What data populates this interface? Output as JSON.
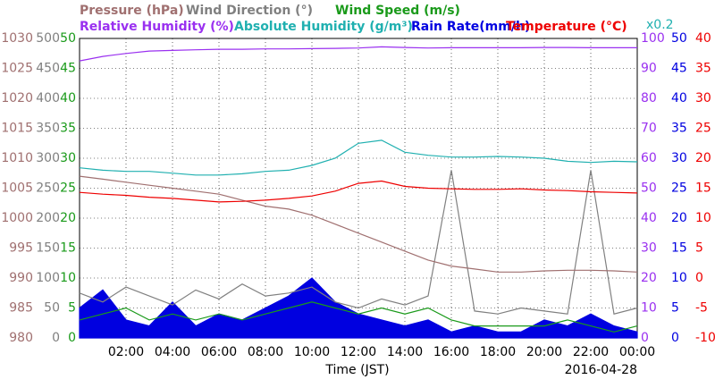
{
  "chart_data": {
    "type": "line",
    "annotation": "x0.2",
    "xlabel": "Time (JST)",
    "date": "2016-04-28",
    "x": [
      0,
      1,
      2,
      3,
      4,
      5,
      6,
      7,
      8,
      9,
      10,
      11,
      12,
      13,
      14,
      15,
      16,
      17,
      18,
      19,
      20,
      21,
      22,
      23,
      24
    ],
    "xlim": [
      0,
      24
    ],
    "xticks": [
      {
        "value": 2,
        "label": "02:00"
      },
      {
        "value": 4,
        "label": "04:00"
      },
      {
        "value": 6,
        "label": "06:00"
      },
      {
        "value": 8,
        "label": "08:00"
      },
      {
        "value": 10,
        "label": "10:00"
      },
      {
        "value": 12,
        "label": "12:00"
      },
      {
        "value": 14,
        "label": "14:00"
      },
      {
        "value": 16,
        "label": "16:00"
      },
      {
        "value": 18,
        "label": "18:00"
      },
      {
        "value": 20,
        "label": "20:00"
      },
      {
        "value": 22,
        "label": "22:00"
      },
      {
        "value": 24,
        "label": "00:00"
      }
    ],
    "grid": true,
    "ylim": [
      980,
      1030
    ],
    "yticks": [
      980,
      985,
      990,
      995,
      1000,
      1005,
      1010,
      1015,
      1020,
      1025,
      1030
    ],
    "ycolor": "#a07070",
    "y2lim": [
      0,
      500
    ],
    "y2ticks": [
      0,
      50,
      100,
      150,
      200,
      250,
      300,
      350,
      400,
      450,
      500
    ],
    "y2color": "#808080",
    "y3lim": [
      0,
      50
    ],
    "y3ticks": [
      0,
      5,
      10,
      15,
      20,
      25,
      30,
      35,
      40,
      45,
      50
    ],
    "y3color": "#1a9a1a",
    "y4lim": [
      0,
      100
    ],
    "y4ticks": [
      0,
      10,
      20,
      30,
      40,
      50,
      60,
      70,
      80,
      90,
      100
    ],
    "y4color": "#9a30f0",
    "y5lim": [
      0,
      50
    ],
    "y5ticks": [
      0,
      5,
      10,
      15,
      20,
      25,
      30,
      35,
      40,
      45,
      50
    ],
    "y5color": "#0000e0",
    "y6lim": [
      -10,
      40
    ],
    "y6ticks": [
      -10,
      -5,
      0,
      5,
      10,
      15,
      20,
      25,
      30,
      35,
      40
    ],
    "y6color": "#ee0000",
    "series": [
      {
        "name": "Rain Rate(mm/h)",
        "color": "#0000e0",
        "axis": "y5",
        "area": true,
        "values": [
          5,
          8,
          3,
          2,
          6,
          2,
          4,
          3,
          5,
          7,
          10,
          6,
          4,
          3,
          2,
          3,
          1,
          2,
          1,
          1,
          3,
          2,
          4,
          2,
          1
        ]
      },
      {
        "name": "Wind Direction (°)",
        "color": "#808080",
        "axis": "y2",
        "values": [
          75,
          60,
          85,
          70,
          55,
          80,
          65,
          90,
          70,
          75,
          85,
          60,
          50,
          65,
          55,
          70,
          280,
          45,
          40,
          50,
          45,
          40,
          280,
          40,
          50
        ]
      },
      {
        "name": "Wind Speed (m/s)",
        "color": "#1a9a1a",
        "axis": "y3",
        "values": [
          3,
          4,
          5,
          3,
          4,
          3,
          4,
          3,
          4,
          5,
          6,
          5,
          4,
          5,
          4,
          5,
          3,
          2,
          2,
          2,
          2,
          3,
          2,
          1,
          2
        ]
      },
      {
        "name": "Pressure (hPa)",
        "color": "#a07070",
        "axis": "y",
        "values": [
          1007,
          1006.5,
          1006,
          1005.5,
          1005,
          1004.5,
          1004,
          1003,
          1002,
          1001.5,
          1000.5,
          999,
          997.5,
          996,
          994.5,
          993,
          992,
          991.5,
          991,
          991,
          991.2,
          991.3,
          991.3,
          991.2,
          991
        ]
      },
      {
        "name": "Absolute Humidity (g/m³)",
        "color": "#20b0b0",
        "axis": "y5",
        "values": [
          28.4,
          28,
          27.8,
          27.8,
          27.5,
          27.2,
          27.2,
          27.4,
          27.8,
          28,
          28.8,
          30,
          32.5,
          33,
          31,
          30.5,
          30.2,
          30.2,
          30.3,
          30.2,
          30,
          29.5,
          29.3,
          29.5,
          29.4
        ]
      },
      {
        "name": "Temperature (°C)",
        "color": "#ee0000",
        "axis": "y6",
        "values": [
          14.3,
          14,
          13.8,
          13.5,
          13.3,
          13,
          12.7,
          12.8,
          13,
          13.3,
          13.7,
          14.5,
          15.8,
          16.2,
          15.3,
          15,
          14.9,
          14.8,
          14.8,
          14.9,
          14.7,
          14.6,
          14.4,
          14.3,
          14.2
        ]
      },
      {
        "name": "Relative Humidity (%)",
        "color": "#9a30f0",
        "axis": "y4",
        "values": [
          92.5,
          94,
          95,
          95.8,
          96,
          96.2,
          96.4,
          96.4,
          96.5,
          96.5,
          96.6,
          96.7,
          96.8,
          97.2,
          97,
          96.8,
          96.9,
          96.9,
          96.9,
          96.9,
          97,
          97,
          96.9,
          96.9,
          96.9
        ]
      }
    ]
  }
}
